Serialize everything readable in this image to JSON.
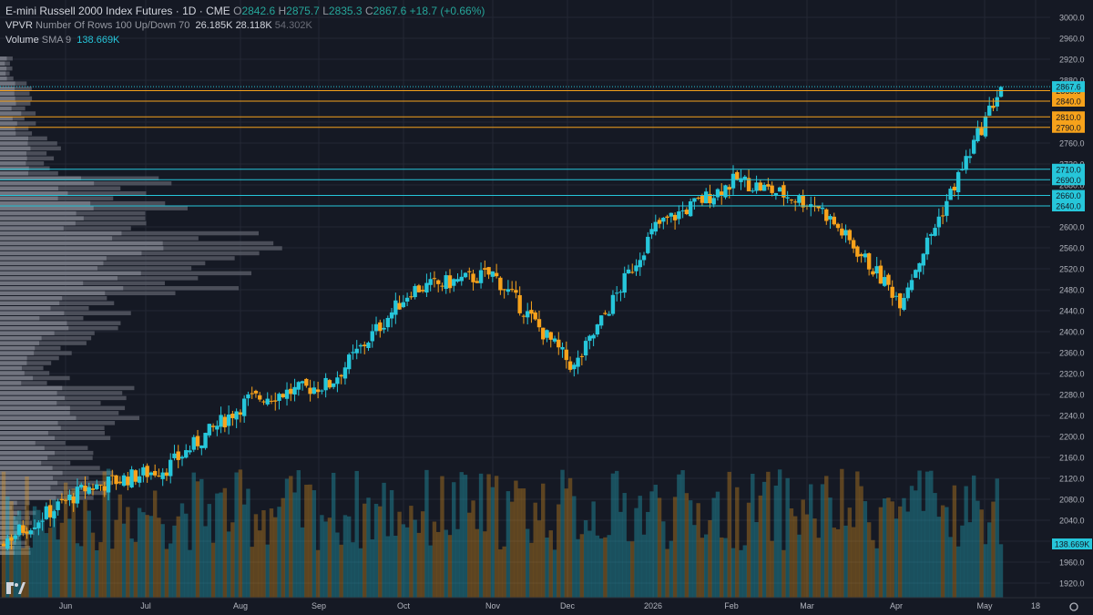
{
  "header": {
    "symbol": "E-mini Russell 2000 Index Futures · 1D · CME",
    "o_label": "O",
    "o_value": "2842.6",
    "h_label": "H",
    "h_value": "2875.7",
    "l_label": "L",
    "l_value": "2835.3",
    "c_label": "C",
    "c_value": "2867.6",
    "change": "+18.7 (+0.66%)",
    "vpvr_label": "VPVR",
    "vpvr_params": "Number Of Rows 100 Up/Down 70",
    "vpvr_v1": "26.185K",
    "vpvr_v2": "28.118K",
    "vpvr_v3": "54.302K",
    "volume_label": "Volume",
    "volume_sma": "SMA 9",
    "volume_value": "138.669K"
  },
  "colors": {
    "background": "#151924",
    "up": "#26c6da",
    "down": "#f7a21b",
    "grid": "#232734",
    "axis_text": "#b2b5be",
    "profile": "#5d606b",
    "profile_light": "#787b86"
  },
  "chart_data": {
    "type": "candlestick",
    "y_ticks": [
      "3000.0",
      "2960.0",
      "2920.0",
      "2880.0",
      "2840.0",
      "2800.0",
      "2760.0",
      "2720.0",
      "2680.0",
      "2640.0",
      "2600.0",
      "2560.0",
      "2520.0",
      "2480.0",
      "2440.0",
      "2400.0",
      "2360.0",
      "2320.0",
      "2280.0",
      "2240.0",
      "2200.0",
      "2160.0",
      "2120.0",
      "2080.0",
      "2040.0",
      "2000.0",
      "1960.0",
      "1920.0"
    ],
    "x_ticks": [
      "Jun",
      "Jul",
      "Aug",
      "Sep",
      "Oct",
      "Nov",
      "Dec",
      "2026",
      "Feb",
      "Mar",
      "Apr",
      "May",
      "18"
    ],
    "last_price": "2867.6",
    "volume_last_label": "138.669K",
    "horizontal_levels": [
      {
        "price": 2860.0,
        "label": "2860.0",
        "color": "#f7a21b"
      },
      {
        "price": 2840.0,
        "label": "2840.0",
        "color": "#f7a21b"
      },
      {
        "price": 2810.0,
        "label": "2810.0",
        "color": "#f7a21b"
      },
      {
        "price": 2790.0,
        "label": "2790.0",
        "color": "#f7a21b"
      },
      {
        "price": 2710.0,
        "label": "2710.0",
        "color": "#26c6da"
      },
      {
        "price": 2690.0,
        "label": "2690.0",
        "color": "#26c6da"
      },
      {
        "price": 2660.0,
        "label": "2660.0",
        "color": "#26c6da"
      },
      {
        "price": 2640.0,
        "label": "2640.0",
        "color": "#26c6da"
      }
    ],
    "closes_by_segment": [
      {
        "month": "May",
        "from": 2000,
        "to": 2100
      },
      {
        "month": "Jun",
        "from": 2100,
        "to": 2140
      },
      {
        "month": "Jul",
        "from": 2140,
        "to": 2270
      },
      {
        "month": "Aug",
        "from": 2270,
        "to": 2300
      },
      {
        "month": "Sep",
        "from": 2300,
        "to": 2480
      },
      {
        "month": "Oct",
        "from": 2480,
        "to": 2510
      },
      {
        "month": "Nov",
        "from": 2510,
        "to": 2330
      },
      {
        "month": "Dec",
        "from": 2330,
        "to": 2600
      },
      {
        "month": "Jan",
        "from": 2600,
        "to": 2690
      },
      {
        "month": "Feb",
        "from": 2690,
        "to": 2640
      },
      {
        "month": "Mar",
        "from": 2640,
        "to": 2460
      },
      {
        "month": "Apr",
        "from": 2460,
        "to": 2790
      },
      {
        "month": "May",
        "from": 2790,
        "to": 2867.6
      }
    ]
  }
}
